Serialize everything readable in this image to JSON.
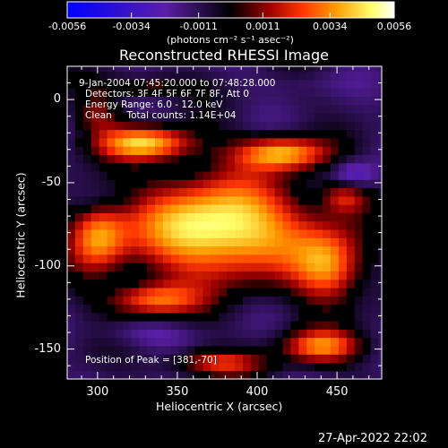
{
  "chart_data": {
    "type": "heatmap",
    "title": "Reconstructed RHESSI Image",
    "xlabel": "Heliocentric X (arcsec)",
    "ylabel": "Heliocentric Y (arcsec)",
    "xlim": [
      281,
      478
    ],
    "ylim": [
      -168,
      20
    ],
    "x_ticks": [
      300,
      350,
      400,
      450
    ],
    "y_ticks": [
      0,
      -50,
      -100,
      -150
    ],
    "colorbar": {
      "ticks": [
        "-0.0056",
        "-0.0034",
        "-0.0011",
        "0.0011",
        "0.0034",
        "0.0056"
      ],
      "tick_values": [
        -0.0056,
        -0.0034,
        -0.0011,
        0.0011,
        0.0034,
        0.0056
      ],
      "range": [
        -0.0056,
        0.0056
      ],
      "unit_label": "(photons cm⁻² s⁻¹ asec⁻²)",
      "colormap": [
        "#0000ff",
        "#5a1fa8",
        "#000000",
        "#a00000",
        "#ff3800",
        "#ff9a00",
        "#ffff6a",
        "#ffffff"
      ]
    },
    "annotations": {
      "time_range": "9-Jan-2004 07:45:20.000 to 07:48:28.000",
      "detectors": "Detectors: 3F 4F 5F 6F 7F 8F, Att 0",
      "energy": "Energy Range: 6.0 - 12.0 keV",
      "clean": "Clean     Total counts: 1.14E+04",
      "peak": "Position of Peak = [381,-70]"
    },
    "peak_position": [
      381,
      -70
    ],
    "sources": [
      {
        "x": 376,
        "y": -77,
        "rx": 55,
        "ry": 30,
        "value": 0.0054
      },
      {
        "x": 330,
        "y": -26,
        "rx": 30,
        "ry": 10,
        "value": 0.004
      },
      {
        "x": 415,
        "y": -32,
        "rx": 28,
        "ry": 10,
        "value": 0.0038
      },
      {
        "x": 300,
        "y": -82,
        "rx": 18,
        "ry": 20,
        "value": 0.003
      },
      {
        "x": 445,
        "y": -100,
        "rx": 22,
        "ry": 22,
        "value": 0.0032
      },
      {
        "x": 335,
        "y": -120,
        "rx": 28,
        "ry": 10,
        "value": 0.0028
      },
      {
        "x": 440,
        "y": -148,
        "rx": 25,
        "ry": 10,
        "value": 0.003
      },
      {
        "x": 375,
        "y": -158,
        "rx": 30,
        "ry": 8,
        "value": 0.002
      },
      {
        "x": 330,
        "y": 8,
        "rx": 30,
        "ry": 6,
        "value": 0.0012
      },
      {
        "x": 300,
        "y": -8,
        "rx": 14,
        "ry": 12,
        "value": 0.001
      },
      {
        "x": 455,
        "y": -58,
        "rx": 14,
        "ry": 10,
        "value": 0.0016
      }
    ],
    "negative_regions": [
      {
        "x": 460,
        "y": -45,
        "rx": 14,
        "ry": 9,
        "value": -0.0034
      },
      {
        "x": 330,
        "y": -140,
        "rx": 28,
        "ry": 8,
        "value": -0.0022
      },
      {
        "x": 305,
        "y": -60,
        "rx": 22,
        "ry": 8,
        "value": -0.0018
      },
      {
        "x": 430,
        "y": 10,
        "rx": 30,
        "ry": 7,
        "value": -0.0016
      }
    ]
  },
  "timestamp": "27-Apr-2022 22:02"
}
